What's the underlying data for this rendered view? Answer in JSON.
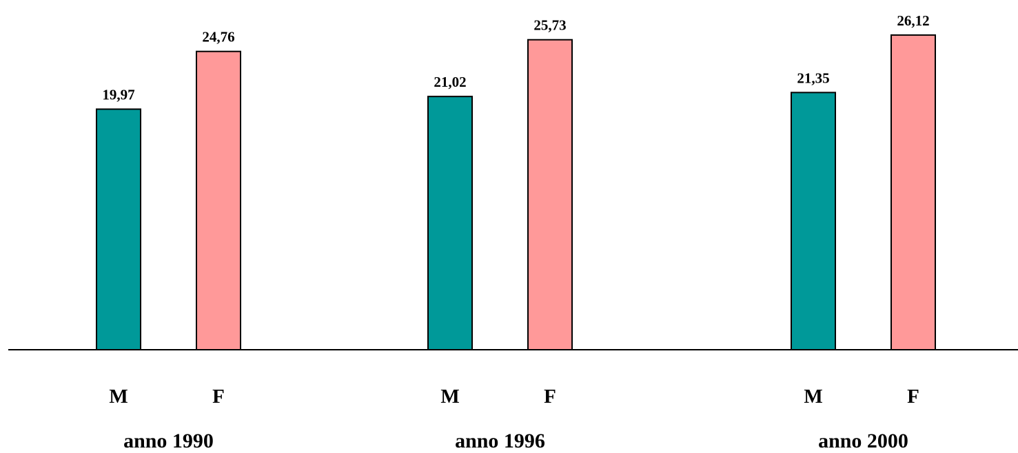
{
  "chart_data": {
    "type": "bar",
    "title": "",
    "xlabel": "",
    "ylabel": "",
    "categories": [
      "anno 1990",
      "anno 1996",
      "anno 2000"
    ],
    "series": [
      {
        "name": "M",
        "values": [
          19.97,
          21.02,
          21.35
        ],
        "labels": [
          "19,97",
          "21,02",
          "21,35"
        ],
        "color": "#009999"
      },
      {
        "name": "F",
        "values": [
          24.76,
          25.73,
          26.12
        ],
        "labels": [
          "24,76",
          "25,73",
          "26,12"
        ],
        "color": "#FF9999"
      }
    ],
    "ylim": [
      0,
      27
    ],
    "grid": false,
    "legend": "none"
  }
}
